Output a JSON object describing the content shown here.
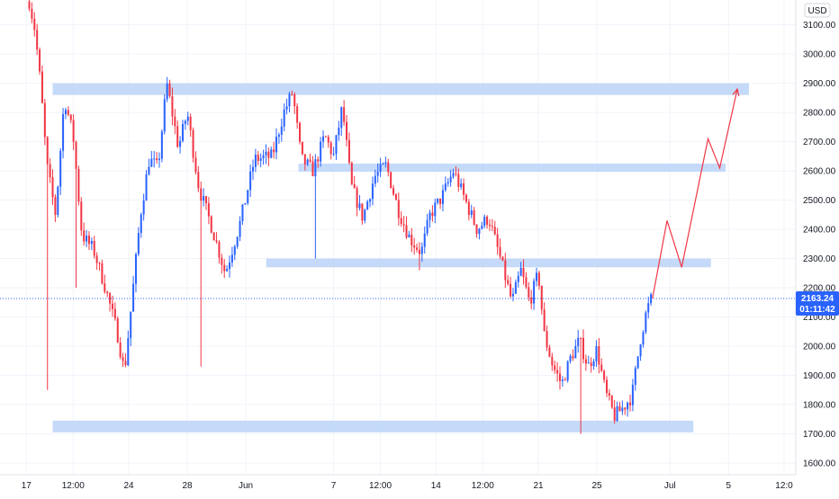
{
  "chart_data": {
    "type": "candlestick",
    "currency_label": "USD",
    "y_ticks": [
      "1600.00",
      "1700.00",
      "1800.00",
      "1900.00",
      "2000.00",
      "2100.00",
      "2200.00",
      "2300.00",
      "2400.00",
      "2500.00",
      "2600.00",
      "2700.00",
      "2800.00",
      "2900.00",
      "3000.00",
      "3100.00"
    ],
    "ylim": [
      1560,
      3185
    ],
    "x_ticks": [
      {
        "label": "17",
        "t": 0
      },
      {
        "label": "12:00",
        "t": 1.6
      },
      {
        "label": "24",
        "t": 3.5
      },
      {
        "label": "28",
        "t": 5.5
      },
      {
        "label": "Jun",
        "t": 7.5
      },
      {
        "label": "7",
        "t": 10.5
      },
      {
        "label": "12:00",
        "t": 12.1
      },
      {
        "label": "14",
        "t": 14
      },
      {
        "label": "12:00",
        "t": 15.6
      },
      {
        "label": "21",
        "t": 17.5
      },
      {
        "label": "25",
        "t": 19.5
      },
      {
        "label": "Jul",
        "t": 22
      },
      {
        "label": "5",
        "t": 24
      },
      {
        "label": "12:0",
        "t": 25.9
      }
    ],
    "xlim": [
      -0.9,
      26.3
    ],
    "last_price": {
      "value": 2163.24,
      "label": "2163.24",
      "countdown": "01:11:42"
    },
    "colors": {
      "up": "#2962ff",
      "down": "#f23645",
      "zone": "#bbd3f7",
      "projection": "#f23645",
      "grid": "#f0f3fa",
      "last_line": "#2962ff",
      "axis_text": "#131722"
    },
    "zones": [
      {
        "price_low": 2860,
        "price_high": 2900,
        "t_start": 0.9,
        "t_end": 24.7
      },
      {
        "price_low": 2597,
        "price_high": 2625,
        "t_start": 9.3,
        "t_end": 23.9
      },
      {
        "price_low": 2270,
        "price_high": 2300,
        "t_start": 8.2,
        "t_end": 23.4
      },
      {
        "price_low": 1705,
        "price_high": 1745,
        "t_start": 0.9,
        "t_end": 22.8
      }
    ],
    "projection": [
      {
        "t": 21.4,
        "price": 2163
      },
      {
        "t": 21.9,
        "price": 2430
      },
      {
        "t": 22.4,
        "price": 2270
      },
      {
        "t": 23.3,
        "price": 2710
      },
      {
        "t": 23.7,
        "price": 2610
      },
      {
        "t": 24.3,
        "price": 2880
      }
    ],
    "keypoints": [
      {
        "t": 0.1,
        "p": 3180
      },
      {
        "t": 0.3,
        "p": 3080
      },
      {
        "t": 0.5,
        "p": 2880
      },
      {
        "t": 0.7,
        "p": 2620
      },
      {
        "t": 1.0,
        "p": 2450
      },
      {
        "t": 1.3,
        "p": 2850
      },
      {
        "t": 1.6,
        "p": 2720
      },
      {
        "t": 1.9,
        "p": 2380
      },
      {
        "t": 2.3,
        "p": 2330
      },
      {
        "t": 2.7,
        "p": 2200
      },
      {
        "t": 3.1,
        "p": 2050
      },
      {
        "t": 3.35,
        "p": 1910
      },
      {
        "t": 3.6,
        "p": 2150
      },
      {
        "t": 3.9,
        "p": 2450
      },
      {
        "t": 4.2,
        "p": 2640
      },
      {
        "t": 4.5,
        "p": 2610
      },
      {
        "t": 4.8,
        "p": 2900
      },
      {
        "t": 5.2,
        "p": 2680
      },
      {
        "t": 5.5,
        "p": 2800
      },
      {
        "t": 5.9,
        "p": 2540
      },
      {
        "t": 6.3,
        "p": 2420
      },
      {
        "t": 6.8,
        "p": 2250
      },
      {
        "t": 7.3,
        "p": 2420
      },
      {
        "t": 7.8,
        "p": 2640
      },
      {
        "t": 8.4,
        "p": 2650
      },
      {
        "t": 8.8,
        "p": 2800
      },
      {
        "t": 9.1,
        "p": 2870
      },
      {
        "t": 9.4,
        "p": 2640
      },
      {
        "t": 9.8,
        "p": 2600
      },
      {
        "t": 10.2,
        "p": 2720
      },
      {
        "t": 10.5,
        "p": 2650
      },
      {
        "t": 10.8,
        "p": 2820
      },
      {
        "t": 11.1,
        "p": 2550
      },
      {
        "t": 11.5,
        "p": 2440
      },
      {
        "t": 11.9,
        "p": 2580
      },
      {
        "t": 12.3,
        "p": 2620
      },
      {
        "t": 12.7,
        "p": 2470
      },
      {
        "t": 13.1,
        "p": 2370
      },
      {
        "t": 13.5,
        "p": 2320
      },
      {
        "t": 13.8,
        "p": 2450
      },
      {
        "t": 14.2,
        "p": 2510
      },
      {
        "t": 14.6,
        "p": 2600
      },
      {
        "t": 15.0,
        "p": 2500
      },
      {
        "t": 15.4,
        "p": 2400
      },
      {
        "t": 15.8,
        "p": 2440
      },
      {
        "t": 16.2,
        "p": 2300
      },
      {
        "t": 16.6,
        "p": 2150
      },
      {
        "t": 16.9,
        "p": 2260
      },
      {
        "t": 17.2,
        "p": 2150
      },
      {
        "t": 17.5,
        "p": 2250
      },
      {
        "t": 17.7,
        "p": 2040
      },
      {
        "t": 18.0,
        "p": 1930
      },
      {
        "t": 18.3,
        "p": 1870
      },
      {
        "t": 18.6,
        "p": 1960
      },
      {
        "t": 18.9,
        "p": 2020
      },
      {
        "t": 19.2,
        "p": 1930
      },
      {
        "t": 19.5,
        "p": 1990
      },
      {
        "t": 19.8,
        "p": 1840
      },
      {
        "t": 20.1,
        "p": 1760
      },
      {
        "t": 20.4,
        "p": 1790
      },
      {
        "t": 20.7,
        "p": 1830
      },
      {
        "t": 21.0,
        "p": 2030
      },
      {
        "t": 21.2,
        "p": 2120
      },
      {
        "t": 21.35,
        "p": 2160
      }
    ],
    "candle_count": 240
  }
}
